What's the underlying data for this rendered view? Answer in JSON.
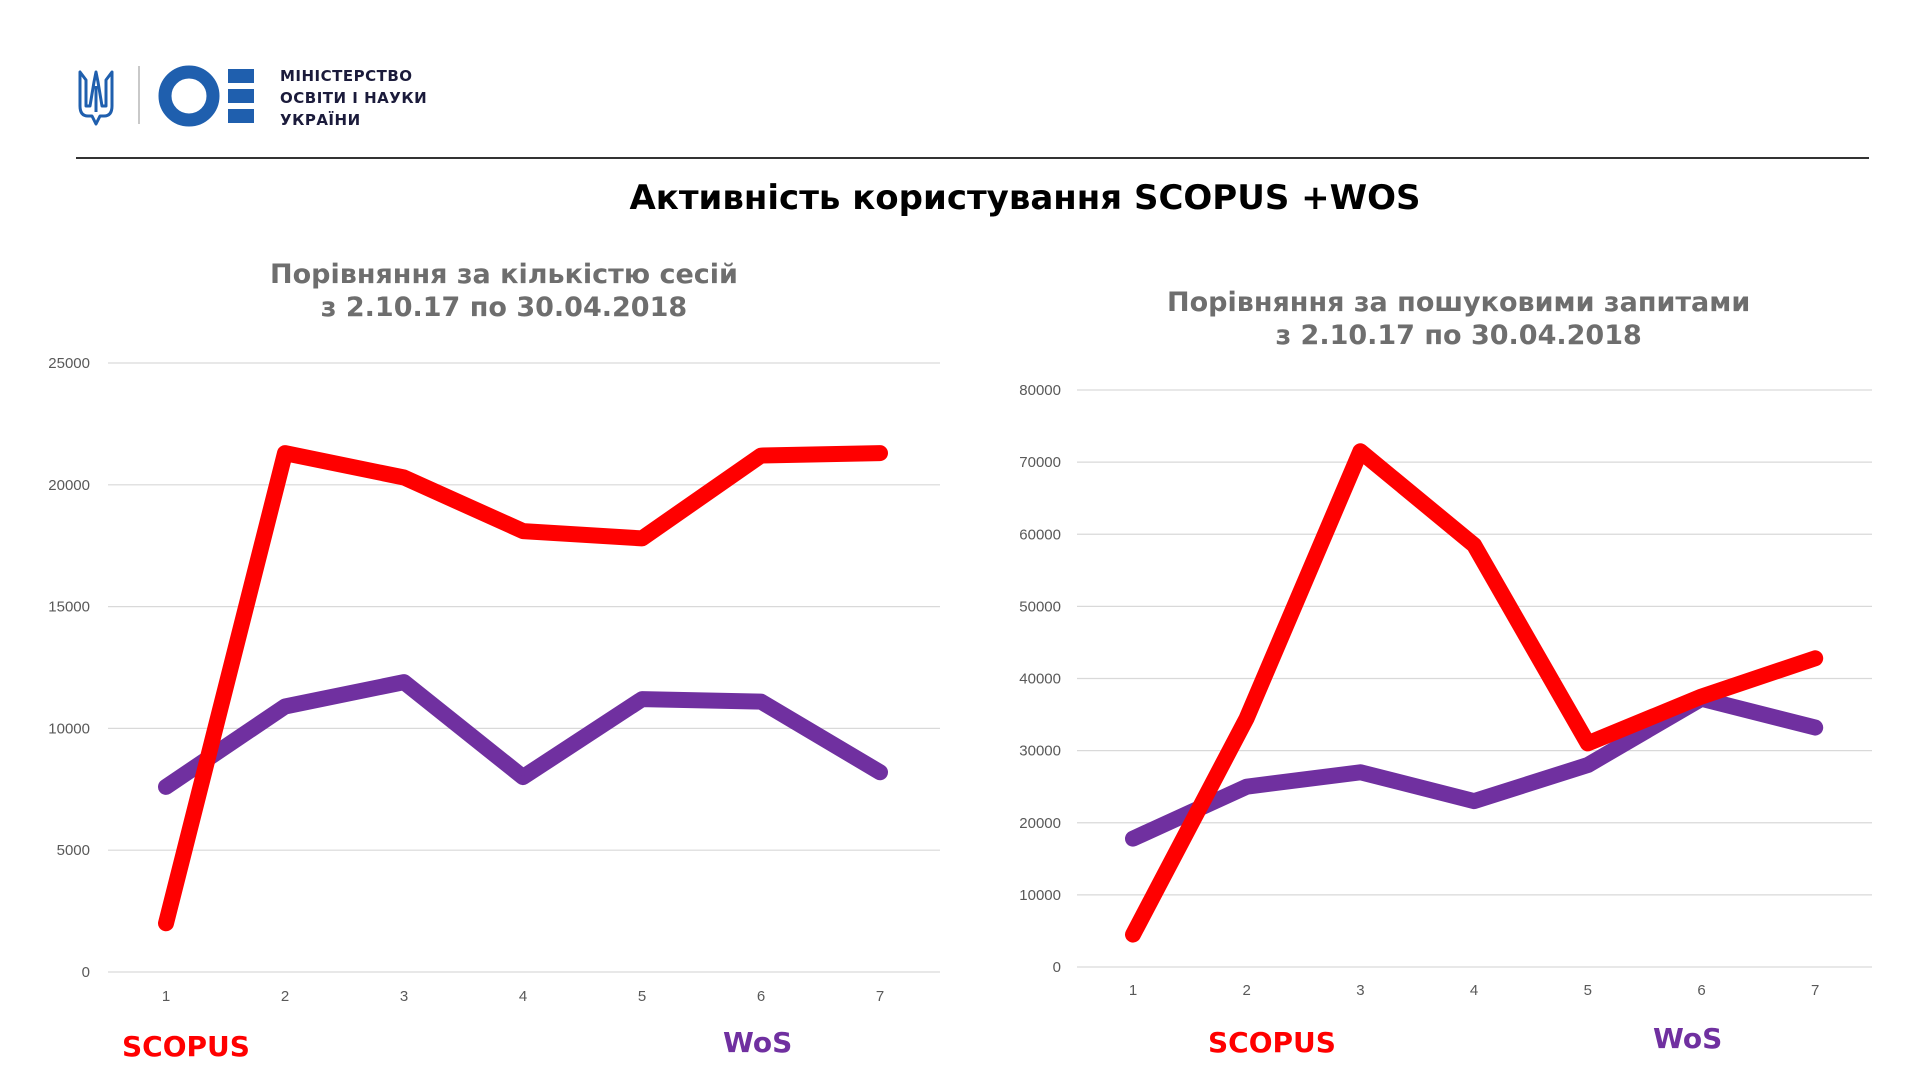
{
  "header": {
    "ministry_lines": [
      "МІНІСТЕРСТВО",
      "ОСВІТИ І НАУКИ",
      "УКРАЇНИ"
    ]
  },
  "main_title": "Активність користування SCOPUS +WOS",
  "colors": {
    "scopus": "#ff0000",
    "wos": "#7030a0",
    "brand_blue": "#1f5fae",
    "gridline": "#d9d9d9"
  },
  "icons": [
    "ukraine-trident-icon",
    "ministry-logo-icon"
  ],
  "chart_data": [
    {
      "type": "line",
      "title_lines": [
        "Порівняння за кількістю сесій",
        "з 2.10.17 по 30.04.2018"
      ],
      "categories": [
        "1",
        "2",
        "3",
        "4",
        "5",
        "6",
        "7"
      ],
      "y_ticks": [
        "0",
        "5000",
        "10000",
        "15000",
        "20000",
        "25000"
      ],
      "ylim": [
        0,
        25000
      ],
      "grid": true,
      "series": [
        {
          "name": "SCOPUS",
          "color": "#ff0000",
          "values": [
            2000,
            21300,
            20300,
            18100,
            17800,
            21200,
            21300
          ]
        },
        {
          "name": "WoS",
          "color": "#7030a0",
          "values": [
            7600,
            10900,
            11900,
            8000,
            11200,
            11100,
            8200
          ]
        }
      ],
      "legend": [
        "SCOPUS",
        "WoS"
      ]
    },
    {
      "type": "line",
      "title_lines": [
        "Порівняння за пошуковими запитами",
        "з 2.10.17 по 30.04.2018"
      ],
      "categories": [
        "1",
        "2",
        "3",
        "4",
        "5",
        "6",
        "7"
      ],
      "y_ticks": [
        "0",
        "10000",
        "20000",
        "30000",
        "40000",
        "50000",
        "60000",
        "70000",
        "80000"
      ],
      "ylim": [
        0,
        80000
      ],
      "grid": true,
      "series": [
        {
          "name": "SCOPUS",
          "color": "#ff0000",
          "values": [
            4500,
            34500,
            71500,
            58500,
            31000,
            37500,
            42800
          ]
        },
        {
          "name": "WoS",
          "color": "#7030a0",
          "values": [
            17800,
            25000,
            27000,
            23000,
            28000,
            37200,
            33200
          ]
        }
      ],
      "legend": [
        "SCOPUS",
        "WoS"
      ]
    }
  ]
}
